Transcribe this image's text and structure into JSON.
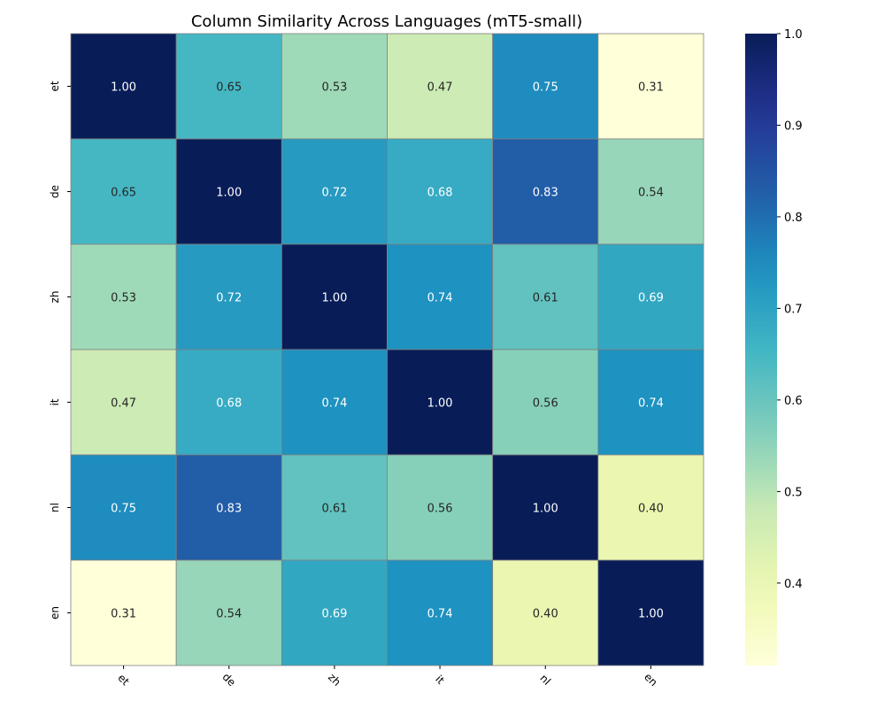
{
  "chart_data": {
    "type": "heatmap",
    "title": "Column Similarity Across Languages (mT5-small)",
    "x_labels": [
      "et",
      "de",
      "zh",
      "it",
      "nl",
      "en"
    ],
    "y_labels": [
      "et",
      "de",
      "zh",
      "it",
      "nl",
      "en"
    ],
    "values": [
      [
        1.0,
        0.65,
        0.53,
        0.47,
        0.75,
        0.31
      ],
      [
        0.65,
        1.0,
        0.72,
        0.68,
        0.83,
        0.54
      ],
      [
        0.53,
        0.72,
        1.0,
        0.74,
        0.61,
        0.69
      ],
      [
        0.47,
        0.68,
        0.74,
        1.0,
        0.56,
        0.74
      ],
      [
        0.75,
        0.83,
        0.61,
        0.56,
        1.0,
        0.4
      ],
      [
        0.31,
        0.54,
        0.69,
        0.74,
        0.4,
        1.0
      ]
    ],
    "value_format": "0.00",
    "colormap": "YlGnBu",
    "colorbar": {
      "min": 0.31,
      "max": 1.0,
      "ticks": [
        "0.4",
        "0.5",
        "0.6",
        "0.7",
        "0.8",
        "0.9",
        "1.0"
      ]
    },
    "grid_line_color": "#808080",
    "x_tick_rotation_deg": 45,
    "y_tick_rotation_deg": 90
  }
}
